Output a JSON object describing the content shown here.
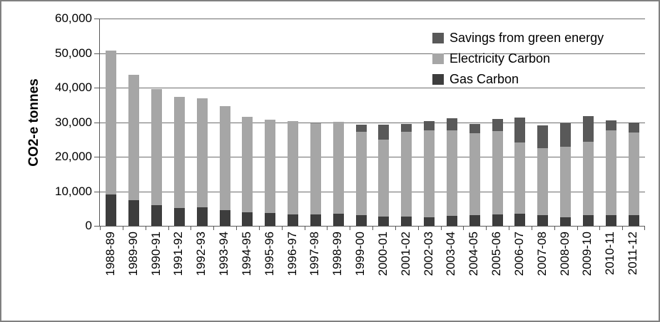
{
  "chart_data": {
    "type": "bar",
    "stacked": true,
    "title": "",
    "xlabel": "",
    "ylabel": "CO2-e tonnes",
    "ylim": [
      0,
      60000
    ],
    "y_tick_values": [
      0,
      10000,
      20000,
      30000,
      40000,
      50000,
      60000
    ],
    "y_tick_labels": [
      "0",
      "10,000",
      "20,000",
      "30,000",
      "40,000",
      "50,000",
      "60,000"
    ],
    "grid": "horizontal",
    "legend_position": "top-right-inside",
    "categories": [
      "1988-89",
      "1989-90",
      "1990-91",
      "1991-92",
      "1992-93",
      "1993-94",
      "1994-95",
      "1995-96",
      "1996-97",
      "1997-98",
      "1998-99",
      "1999-00",
      "2000-01",
      "2001-02",
      "2002-03",
      "2003-04",
      "2004-05",
      "2005-06",
      "2006-07",
      "2007-08",
      "2008-09",
      "2009-10",
      "2010-11",
      "2011-12"
    ],
    "series": [
      {
        "name": "Gas Carbon",
        "color": "#3d3d3d",
        "values": [
          9000,
          7500,
          5900,
          5100,
          5300,
          4500,
          3900,
          3800,
          3400,
          3400,
          3600,
          3000,
          2700,
          2700,
          2500,
          2900,
          3000,
          3400,
          3500,
          3000,
          2500,
          3000,
          3100,
          3100
        ]
      },
      {
        "name": "Electricity Carbon",
        "color": "#a6a6a6",
        "values": [
          41800,
          36200,
          33600,
          32300,
          31700,
          30200,
          27700,
          26900,
          27000,
          26200,
          26600,
          24300,
          22200,
          24600,
          25100,
          24800,
          23900,
          24100,
          20600,
          19400,
          20400,
          21300,
          24600,
          24000
        ]
      },
      {
        "name": "Savings from green energy",
        "color": "#595959",
        "values": [
          0,
          0,
          0,
          0,
          0,
          0,
          0,
          0,
          0,
          0,
          0,
          2000,
          4300,
          2100,
          2700,
          3400,
          2600,
          3400,
          7200,
          6700,
          6800,
          7400,
          2800,
          2900
        ]
      }
    ],
    "legend": [
      {
        "label": "Savings from green energy",
        "color": "#595959"
      },
      {
        "label": "Electricity Carbon",
        "color": "#a6a6a6"
      },
      {
        "label": "Gas Carbon",
        "color": "#3d3d3d"
      }
    ],
    "colors": {
      "gridline": "#6e6e6e",
      "axis": "#595959",
      "border": "#808080",
      "background": "#ffffff",
      "text": "#000000"
    }
  }
}
